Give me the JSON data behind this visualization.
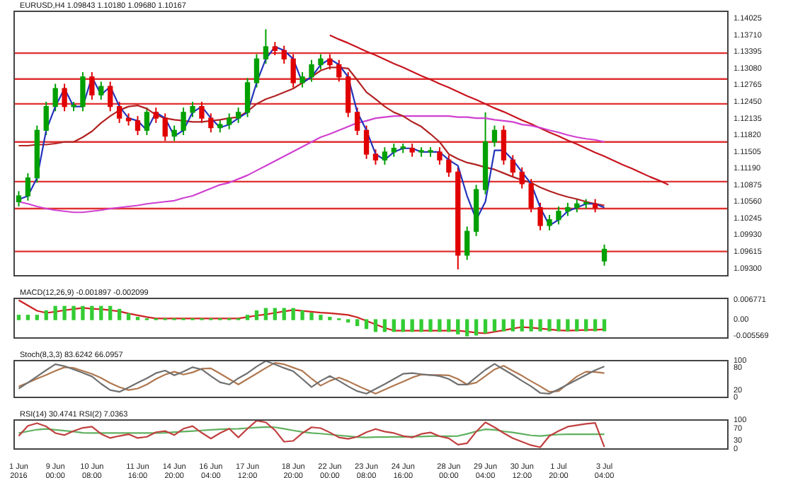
{
  "chart_data": [
    {
      "type": "candlestick",
      "title": "EURUSD,H4 1.09843 1.10180 1.09680 1.10167",
      "ylim": [
        1.0916,
        1.1416
      ],
      "yticks": [
        1.14025,
        {
          "value": 1.1371,
          "label": "1.13710"
        },
        1.13395,
        {
          "value": 1.1308,
          "label": "1.13080"
        },
        1.12765,
        {
          "value": 1.1245,
          "label": "1.12450"
        },
        1.12135,
        {
          "value": 1.1182,
          "label": "1.11820"
        },
        1.11505,
        {
          "value": 1.1119,
          "label": "1.11190"
        },
        1.10875,
        {
          "value": 1.1056,
          "label": "1.10560"
        },
        1.10245,
        {
          "value": 1.0993,
          "label": "1.09930"
        },
        1.09615,
        {
          "value": 1.093,
          "label": "1.09300"
        }
      ],
      "categories": [
        null,
        null,
        null,
        null,
        null,
        null,
        null,
        null,
        null,
        null,
        null,
        null,
        null,
        null,
        null,
        null,
        null,
        null,
        null,
        null,
        null,
        null,
        null,
        null,
        null,
        null,
        null,
        null,
        null,
        null,
        null,
        null,
        null,
        null,
        null,
        null,
        null,
        null,
        null,
        null,
        null,
        null,
        null,
        null,
        null,
        null,
        null,
        null,
        null,
        null,
        null,
        null,
        null,
        null,
        null,
        null,
        null,
        null,
        null,
        null,
        null,
        null,
        null,
        null,
        null,
        null,
        null,
        null,
        null,
        null,
        null,
        null,
        null,
        null,
        null,
        null,
        null,
        null
      ],
      "ohlc": [
        [
          1.1056,
          1.1076,
          1.1047,
          1.1067
        ],
        [
          1.1067,
          1.111,
          1.1058,
          1.1101
        ],
        [
          1.1101,
          1.12,
          1.1092,
          1.1191
        ],
        [
          1.1191,
          1.1245,
          1.1182,
          1.1236
        ],
        [
          1.1236,
          1.1279,
          1.1227,
          1.127
        ],
        [
          1.127,
          1.1279,
          1.1227,
          1.1236
        ],
        [
          1.1236,
          1.1245,
          1.1227,
          1.1236
        ],
        [
          1.1236,
          1.1301,
          1.1227,
          1.1292
        ],
        [
          1.1292,
          1.1301,
          1.1249,
          1.1258
        ],
        [
          1.1258,
          1.1283,
          1.1249,
          1.1274
        ],
        [
          1.1274,
          1.1283,
          1.1227,
          1.1236
        ],
        [
          1.1236,
          1.1245,
          1.1205,
          1.1214
        ],
        [
          1.1214,
          1.1223,
          1.12,
          1.1209
        ],
        [
          1.1209,
          1.1218,
          1.1182,
          1.1191
        ],
        [
          1.1191,
          1.1234,
          1.1182,
          1.1225
        ],
        [
          1.1225,
          1.1234,
          1.1205,
          1.1214
        ],
        [
          1.1214,
          1.1223,
          1.1171,
          1.118
        ],
        [
          1.118,
          1.12,
          1.1171,
          1.1191
        ],
        [
          1.1191,
          1.1234,
          1.1182,
          1.1225
        ],
        [
          1.1225,
          1.1245,
          1.1216,
          1.1236
        ],
        [
          1.1236,
          1.1245,
          1.1205,
          1.1214
        ],
        [
          1.1214,
          1.1223,
          1.1187,
          1.1196
        ],
        [
          1.1196,
          1.1211,
          1.1187,
          1.1202
        ],
        [
          1.1202,
          1.1223,
          1.1193,
          1.1214
        ],
        [
          1.1214,
          1.1234,
          1.1205,
          1.1225
        ],
        [
          1.1225,
          1.129,
          1.1216,
          1.1281
        ],
        [
          1.1281,
          1.1335,
          1.1272,
          1.1326
        ],
        [
          1.1326,
          1.1382,
          1.1317,
          1.1349
        ],
        [
          1.1349,
          1.1358,
          1.1333,
          1.1342
        ],
        [
          1.1342,
          1.1351,
          1.1317,
          1.1326
        ],
        [
          1.1326,
          1.1335,
          1.1272,
          1.1281
        ],
        [
          1.1281,
          1.1301,
          1.1272,
          1.1292
        ],
        [
          1.1292,
          1.1324,
          1.1283,
          1.1315
        ],
        [
          1.1315,
          1.1335,
          1.1306,
          1.1326
        ],
        [
          1.1326,
          1.1335,
          1.1306,
          1.1315
        ],
        [
          1.1315,
          1.1324,
          1.1283,
          1.1292
        ],
        [
          1.1292,
          1.1301,
          1.1216,
          1.1225
        ],
        [
          1.1225,
          1.1234,
          1.1182,
          1.1191
        ],
        [
          1.1191,
          1.12,
          1.1137,
          1.1146
        ],
        [
          1.1146,
          1.1155,
          1.1126,
          1.1135
        ],
        [
          1.1135,
          1.1159,
          1.1126,
          1.115
        ],
        [
          1.115,
          1.1166,
          1.1141,
          1.1157
        ],
        [
          1.1157,
          1.1166,
          1.1148,
          1.1157
        ],
        [
          1.1157,
          1.1166,
          1.1141,
          1.115
        ],
        [
          1.115,
          1.1159,
          1.1141,
          1.115
        ],
        [
          1.115,
          1.1159,
          1.1141,
          1.115
        ],
        [
          1.115,
          1.1159,
          1.1126,
          1.1135
        ],
        [
          1.1135,
          1.1144,
          1.1103,
          1.1112
        ],
        [
          1.1112,
          1.1121,
          1.0928,
          1.0955
        ],
        [
          1.0955,
          1.1009,
          1.0946,
          1.1
        ],
        [
          1.1,
          1.1088,
          1.0991,
          1.1079
        ],
        [
          1.1079,
          1.1225,
          1.107,
          1.1169
        ],
        [
          1.1169,
          1.12,
          1.116,
          1.1191
        ],
        [
          1.1191,
          1.12,
          1.1126,
          1.1135
        ],
        [
          1.1135,
          1.1144,
          1.1103,
          1.1112
        ],
        [
          1.1112,
          1.1121,
          1.1081,
          1.109
        ],
        [
          1.109,
          1.1099,
          1.1036,
          1.1045
        ],
        [
          1.1045,
          1.1054,
          1.1002,
          1.1011
        ],
        [
          1.1011,
          1.1031,
          1.1002,
          1.1022
        ],
        [
          1.1022,
          1.1047,
          1.1013,
          1.1038
        ],
        [
          1.1038,
          1.1054,
          1.1029,
          1.1045
        ],
        [
          1.1045,
          1.1061,
          1.1036,
          1.1052
        ],
        [
          1.1052,
          1.1061,
          1.1043,
          1.1052
        ],
        [
          1.1052,
          1.1061,
          1.1036,
          1.1045
        ],
        [
          1.0944,
          1.0975,
          1.0935,
          1.0966
        ],
        null,
        null,
        null,
        null,
        null,
        null,
        null,
        null,
        null,
        null,
        null,
        null,
        null
      ],
      "colors": [
        "#00a000",
        "#00a000",
        "#00a000",
        "#00a000",
        "#00a000",
        "#e00000",
        "#00a000",
        "#00a000",
        "#e00000",
        "#00a000",
        "#e00000",
        "#e00000",
        "#e00000",
        "#e00000",
        "#00a000",
        "#e00000",
        "#e00000",
        "#00a000",
        "#00a000",
        "#00a000",
        "#e00000",
        "#e00000",
        "#00a000",
        "#00a000",
        "#00a000",
        "#00a000",
        "#00a000",
        "#00a000",
        "#e00000",
        "#e00000",
        "#e00000",
        "#00a000",
        "#00a000",
        "#00a000",
        "#e00000",
        "#e00000",
        "#e00000",
        "#e00000",
        "#e00000",
        "#e00000",
        "#00a000",
        "#00a000",
        "#00a000",
        "#e00000",
        "#00a000",
        "#00a000",
        "#e00000",
        "#e00000",
        "#e00000",
        "#00a000",
        "#00a000",
        "#00a000",
        "#00a000",
        "#e00000",
        "#e00000",
        "#e00000",
        "#e00000",
        "#e00000",
        "#00a000",
        "#00a000",
        "#00a000",
        "#00a000",
        "#00a000",
        "#e00000",
        "#00a000",
        null,
        null,
        null,
        null,
        null,
        null,
        null,
        null,
        null,
        null,
        null,
        null,
        null
      ],
      "series": [
        {
          "type": "line",
          "color": "#2233bb",
          "values": [
            1.106,
            1.1067,
            1.1101,
            1.1191,
            1.1236,
            1.127,
            1.1236,
            1.1236,
            1.1292,
            1.1258,
            1.1274,
            1.1236,
            1.1214,
            1.1209,
            1.1191,
            1.1225,
            1.1214,
            1.118,
            1.1191,
            1.1225,
            1.1236,
            1.1214,
            1.1196,
            1.1202,
            1.1214,
            1.1225,
            1.1281,
            1.1326,
            1.1349,
            1.1342,
            1.1326,
            1.1281,
            1.1292,
            1.1315,
            1.1326,
            1.1315,
            1.1292,
            1.1225,
            1.1191,
            1.1146,
            1.1135,
            1.115,
            1.1157,
            1.1157,
            1.115,
            1.115,
            1.115,
            1.1135,
            1.1124,
            1.1067,
            1.1022,
            1.1056,
            1.1153,
            1.1153,
            1.1135,
            1.1112,
            1.109,
            1.1045,
            1.1011,
            1.1022,
            1.1038,
            1.1045,
            1.1052,
            1.1052,
            1.1045,
            null,
            null,
            null,
            null,
            null,
            null,
            null,
            null,
            null,
            null,
            null,
            null,
            null
          ]
        },
        {
          "type": "line",
          "color": "#b22222",
          "values": [
            1.1162,
            1.1162,
            1.1164,
            1.1164,
            1.1166,
            1.1169,
            1.1169,
            1.1178,
            1.1189,
            1.1205,
            1.1218,
            1.1229,
            1.1236,
            1.1238,
            1.1232,
            1.122,
            1.1214,
            1.1211,
            1.1209,
            1.1207,
            1.1207,
            1.1209,
            1.1211,
            1.1214,
            1.1216,
            1.1227,
            1.1241,
            1.125,
            1.1256,
            1.1263,
            1.127,
            1.1281,
            1.1292,
            1.1304,
            1.131,
            1.131,
            1.1308,
            1.1286,
            1.1263,
            1.125,
            1.1236,
            1.1225,
            1.1218,
            1.1207,
            1.1198,
            1.1184,
            1.1169,
            1.1146,
            1.1137,
            1.113,
            1.1126,
            1.1121,
            1.1117,
            1.111,
            1.1103,
            1.1097,
            1.1092,
            1.1083,
            1.1076,
            1.107,
            1.1065,
            1.1061,
            1.1056,
            1.1052,
            1.1049,
            null,
            null,
            null,
            null,
            null,
            null,
            null,
            null,
            null,
            null,
            null,
            null,
            null
          ]
        },
        {
          "type": "line",
          "color": "#d040d0",
          "values": [
            1.1056,
            1.1052,
            1.1047,
            1.1043,
            1.104,
            1.1038,
            1.1036,
            1.1036,
            1.1038,
            1.104,
            1.1043,
            1.1045,
            1.1047,
            1.1049,
            1.1052,
            1.1054,
            1.1056,
            1.1058,
            1.1063,
            1.1067,
            1.1074,
            1.1081,
            1.1088,
            1.1092,
            1.1099,
            1.1106,
            1.1115,
            1.1124,
            1.1133,
            1.1142,
            1.1151,
            1.116,
            1.1169,
            1.1178,
            1.1184,
            1.1191,
            1.1198,
            1.1205,
            1.1209,
            1.1214,
            1.1216,
            1.1218,
            1.1218,
            1.1218,
            1.1218,
            1.1218,
            1.1218,
            1.1218,
            1.1216,
            1.1216,
            1.1214,
            1.1214,
            1.1211,
            1.1209,
            1.1207,
            1.1202,
            1.12,
            1.1196,
            1.1191,
            1.1187,
            1.1182,
            1.1178,
            1.1175,
            1.1173,
            1.1169,
            null,
            null,
            null,
            null,
            null,
            null,
            null,
            null,
            null,
            null,
            null,
            null,
            null
          ]
        },
        {
          "type": "line",
          "color": "#c8141e",
          "values": [
            null,
            null,
            null,
            null,
            null,
            null,
            null,
            null,
            null,
            null,
            null,
            null,
            null,
            null,
            null,
            null,
            null,
            null,
            null,
            null,
            null,
            null,
            null,
            null,
            null,
            null,
            null,
            null,
            null,
            null,
            null,
            null,
            null,
            null,
            1.1371,
            1.1363,
            1.1356,
            1.1348,
            1.134,
            1.1333,
            1.1325,
            1.1317,
            1.131,
            1.1302,
            1.1294,
            1.1287,
            1.1279,
            1.1272,
            1.1264,
            1.1256,
            1.1249,
            1.1241,
            1.1233,
            1.1226,
            1.1218,
            1.121,
            1.1203,
            1.1195,
            1.1187,
            1.118,
            1.1172,
            1.1165,
            1.1157,
            1.1149,
            1.1142,
            1.1134,
            1.1126,
            1.1119,
            1.1111,
            1.1103,
            1.1096,
            1.1088,
            null,
            null,
            null,
            null,
            null,
            null
          ]
        }
      ],
      "ref_lines": [
        {
          "axis": "y",
          "value": 1.1337,
          "color": "#e03030"
        },
        {
          "axis": "y",
          "value": 1.1288,
          "color": "#e03030"
        },
        {
          "axis": "y",
          "value": 1.1241,
          "color": "#e03030"
        },
        {
          "axis": "y",
          "value": 1.1169,
          "color": "#e03030"
        },
        {
          "axis": "y",
          "value": 1.1094,
          "color": "#e03030"
        },
        {
          "axis": "y",
          "value": 1.1043,
          "color": "#e03030"
        },
        {
          "axis": "y",
          "value": 1.0962,
          "color": "#e03030"
        }
      ]
    },
    {
      "type": "bar",
      "title": "MACD(12,26,9) -0.001897 -0.002099",
      "ylim": [
        -0.0062,
        0.0072
      ],
      "yticks": [
        0.006771,
        {
          "value": 0,
          "label": "0.00"
        },
        -0.005569
      ],
      "categories": [
        null,
        null,
        null,
        null,
        null,
        null,
        null,
        null,
        null,
        null,
        null,
        null,
        null,
        null,
        null,
        null,
        null,
        null,
        null,
        null,
        null,
        null,
        null,
        null,
        null,
        null,
        null,
        null,
        null,
        null,
        null,
        null,
        null,
        null,
        null,
        null,
        null,
        null,
        null,
        null,
        null,
        null,
        null,
        null,
        null,
        null,
        null,
        null,
        null,
        null,
        null,
        null,
        null,
        null,
        null,
        null,
        null,
        null,
        null,
        null,
        null,
        null,
        null,
        null,
        null,
        null,
        null,
        null,
        null,
        null,
        null,
        null,
        null,
        null,
        null,
        null,
        null,
        null
      ],
      "series": [
        {
          "color": "#33cc33",
          "values": [
            0.0015,
            0.0015,
            0.0015,
            0.003,
            0.0045,
            0.0045,
            0.0045,
            0.0045,
            0.0045,
            0.0045,
            0.0045,
            0.0035,
            0.002,
            0.0008,
            0.0003,
            0.0003,
            0.0003,
            0.0003,
            0.0003,
            0.0003,
            0.0003,
            0.0003,
            0.0003,
            0.0003,
            0.0003,
            0.0015,
            0.003,
            0.0038,
            0.0038,
            0.0038,
            0.0038,
            0.003,
            0.0022,
            0.0015,
            0.0008,
            0.0003,
            -0.0008,
            -0.002,
            -0.003,
            -0.004,
            -0.004,
            -0.004,
            -0.004,
            -0.004,
            -0.004,
            -0.004,
            -0.004,
            -0.004,
            -0.0048,
            -0.0055,
            -0.0052,
            -0.0045,
            -0.0038,
            -0.0038,
            -0.0038,
            -0.0038,
            -0.0038,
            -0.0038,
            -0.0038,
            -0.0038,
            -0.0038,
            -0.0038,
            -0.0038,
            -0.0038,
            -0.0038,
            null,
            null,
            null,
            null,
            null,
            null,
            null,
            null,
            null,
            null,
            null,
            null,
            null
          ]
        },
        {
          "type": "line",
          "color": "#cc2222",
          "values": [
            0.0066,
            0.0048,
            0.003,
            0.0023,
            0.0027,
            0.0032,
            0.0036,
            0.004,
            0.0037,
            0.0035,
            0.0032,
            0.0028,
            0.0021,
            0.0015,
            0.0009,
            0.0004,
            0.0004,
            0.0004,
            0.0004,
            0.0004,
            0.0004,
            0.0004,
            0.0004,
            0.0004,
            0.0004,
            0.0009,
            0.0014,
            0.0018,
            0.0023,
            0.0028,
            0.0033,
            0.003,
            0.0027,
            0.0024,
            0.0022,
            0.0019,
            0.0016,
            0.0008,
            -0.0004,
            -0.0016,
            -0.0028,
            -0.0037,
            -0.0037,
            -0.0037,
            -0.0037,
            -0.0037,
            -0.0037,
            -0.0037,
            -0.0037,
            -0.004,
            -0.0044,
            -0.0046,
            -0.0041,
            -0.0036,
            -0.003,
            -0.0025,
            -0.0027,
            -0.003,
            -0.0033,
            -0.0036,
            -0.0037,
            -0.0036,
            -0.0035,
            -0.0034,
            -0.0033,
            null,
            null,
            null,
            null,
            null,
            null,
            null,
            null,
            null,
            null,
            null,
            null,
            null
          ]
        }
      ]
    },
    {
      "type": "line",
      "title": "Stoch(8,3,3) 83.6242 66.0957",
      "ylim": [
        0,
        100
      ],
      "yticks": [
        0,
        20,
        80,
        100
      ],
      "categories": [
        null,
        null,
        null,
        null,
        null,
        null,
        null,
        null,
        null,
        null,
        null,
        null,
        null,
        null,
        null,
        null,
        null,
        null,
        null,
        null,
        null,
        null,
        null,
        null,
        null,
        null,
        null,
        null,
        null,
        null,
        null,
        null,
        null,
        null,
        null,
        null,
        null,
        null,
        null,
        null,
        null,
        null,
        null,
        null,
        null,
        null,
        null,
        null,
        null,
        null,
        null,
        null,
        null,
        null,
        null,
        null,
        null,
        null,
        null,
        null,
        null,
        null,
        null,
        null,
        null,
        null,
        null,
        null,
        null,
        null,
        null,
        null,
        null,
        null,
        null,
        null,
        null,
        null
      ],
      "series": [
        {
          "color": "#707070",
          "values": [
            24,
            40,
            57,
            74,
            90,
            85,
            76,
            67,
            57,
            37,
            20,
            15,
            27,
            40,
            52,
            66,
            73,
            60,
            70,
            82,
            76,
            58,
            41,
            35,
            52,
            66,
            84,
            99,
            90,
            80,
            71,
            50,
            28,
            45,
            58,
            45,
            30,
            17,
            10,
            23,
            36,
            50,
            64,
            66,
            63,
            61,
            58,
            50,
            35,
            35,
            55,
            75,
            91,
            76,
            61,
            45,
            30,
            12,
            10,
            22,
            35,
            48,
            61,
            74,
            84,
            null,
            null,
            null,
            null,
            null,
            null,
            null,
            null,
            null,
            null,
            null,
            null,
            null
          ]
        },
        {
          "color": "#b07850",
          "values": [
            30,
            40,
            51,
            61,
            72,
            82,
            80,
            72,
            64,
            53,
            39,
            28,
            20,
            24,
            35,
            50,
            62,
            70,
            62,
            68,
            78,
            79,
            65,
            50,
            35,
            50,
            65,
            80,
            94,
            90,
            81,
            72,
            51,
            32,
            45,
            54,
            44,
            32,
            21,
            10,
            21,
            32,
            43,
            54,
            62,
            61,
            61,
            60,
            50,
            35,
            40,
            58,
            76,
            86,
            72,
            59,
            44,
            30,
            15,
            17,
            37,
            57,
            70,
            69,
            66,
            null,
            null,
            null,
            null,
            null,
            null,
            null,
            null,
            null,
            null,
            null,
            null,
            null
          ]
        }
      ]
    },
    {
      "type": "line",
      "title": "RSI(14) 30.4741 RSI(2) 7.0363",
      "ylim": [
        0,
        100
      ],
      "yticks": [
        0,
        30,
        70,
        100
      ],
      "categories": [
        "1 Jun 2016",
        null,
        null,
        null,
        "9 Jun 00:00",
        null,
        null,
        null,
        "10 Jun 08:00",
        null,
        null,
        null,
        null,
        "11 Jun 16:00",
        null,
        null,
        null,
        "14 Jun 20:00",
        null,
        null,
        null,
        "16 Jun 04:00",
        null,
        null,
        null,
        "17 Jun 12:00",
        null,
        null,
        null,
        null,
        "18 Jun 20:00",
        null,
        null,
        null,
        "22 Jun 00:00",
        null,
        null,
        null,
        "23 Jun 08:00",
        null,
        null,
        null,
        "24 Jun 16:00",
        null,
        null,
        null,
        null,
        "28 Jun 00:00",
        null,
        null,
        null,
        "29 Jun 04:00",
        null,
        null,
        null,
        "30 Jun 12:00",
        null,
        null,
        null,
        "1 Jul 20:00",
        null,
        null,
        null,
        null,
        "3 Jul 04:00",
        null,
        null,
        null,
        null,
        null,
        null,
        null,
        null,
        null,
        null,
        null,
        null,
        null
      ],
      "series": [
        {
          "color": "#c04040",
          "values": [
            45,
            80,
            89,
            78,
            55,
            48,
            62,
            73,
            77,
            52,
            38,
            45,
            51,
            38,
            42,
            58,
            62,
            48,
            70,
            79,
            56,
            36,
            55,
            70,
            40,
            70,
            98,
            92,
            65,
            25,
            28,
            55,
            75,
            72,
            57,
            40,
            35,
            42,
            58,
            69,
            60,
            55,
            45,
            40,
            52,
            57,
            44,
            37,
            15,
            20,
            60,
            92,
            75,
            55,
            37,
            25,
            13,
            6,
            45,
            62,
            77,
            82,
            87,
            90,
            7,
            null,
            null,
            null,
            null,
            null,
            null,
            null,
            null,
            null,
            null,
            null,
            null,
            null
          ]
        },
        {
          "color": "#60b060",
          "values": [
            55,
            61,
            67,
            69,
            66,
            63,
            60,
            56,
            55,
            55,
            55,
            55,
            55,
            55,
            55,
            55,
            56,
            58,
            60,
            62,
            64,
            66,
            68,
            69,
            70,
            72,
            74,
            76,
            75,
            70,
            64,
            59,
            55,
            53,
            50,
            47,
            44,
            41,
            40,
            41,
            41,
            42,
            42,
            43,
            43,
            44,
            44,
            44,
            45,
            52,
            61,
            68,
            66,
            61,
            57,
            52,
            47,
            45,
            48,
            50,
            51,
            51,
            51,
            51,
            51,
            null,
            null,
            null,
            null,
            null,
            null,
            null,
            null,
            null,
            null,
            null,
            null,
            null
          ]
        }
      ]
    }
  ]
}
